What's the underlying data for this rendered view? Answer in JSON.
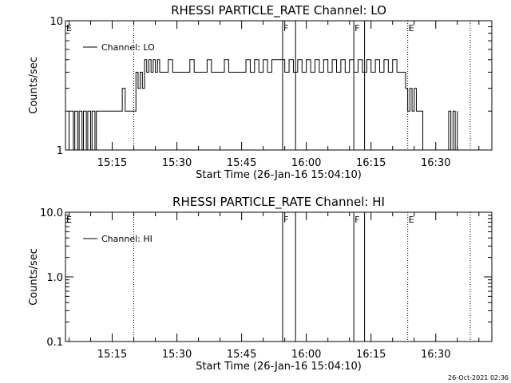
{
  "timestamp": "26-Oct-2021 02:36",
  "chart_data": [
    {
      "type": "line",
      "title": "RHESSI PARTICLE_RATE Channel: LO",
      "xlabel": "Start Time (26-Jan-16 15:04:10)",
      "ylabel": "Counts/sec",
      "yscale": "log",
      "ylim": [
        1,
        10
      ],
      "yticks": [
        "10",
        "1"
      ],
      "xlim": [
        "15:04:10",
        "16:43:00"
      ],
      "xticks": [
        "15:15",
        "15:30",
        "15:45",
        "16:00",
        "16:15",
        "16:30"
      ],
      "legend": "top-left",
      "series": [
        {
          "name": "Channel: LO",
          "x": [
            "15:04:40",
            "15:05:00",
            "15:06:00",
            "15:06:20",
            "15:07:00",
            "15:07:20",
            "15:08:00",
            "15:08:20",
            "15:09:00",
            "15:09:20",
            "15:10:00",
            "15:10:20",
            "15:11:00",
            "15:11:20",
            "15:12:00",
            "15:14:00",
            "15:16:00",
            "15:17:00",
            "15:17:20",
            "15:18:00",
            "15:20:00",
            "15:20:30",
            "15:21:00",
            "15:21:30",
            "15:22:00",
            "15:22:30",
            "15:23:00",
            "15:23:30",
            "15:24:00",
            "15:24:30",
            "15:25:00",
            "15:25:30",
            "15:26:00",
            "15:27:00",
            "15:28:00",
            "15:29:00",
            "15:30:00",
            "15:31:00",
            "15:32:00",
            "15:33:00",
            "15:34:00",
            "15:35:00",
            "15:36:00",
            "15:37:00",
            "15:38:00",
            "15:39:00",
            "15:40:00",
            "15:41:00",
            "15:42:00",
            "15:43:00",
            "15:44:00",
            "15:45:00",
            "15:46:00",
            "15:47:00",
            "15:48:00",
            "15:49:00",
            "15:50:00",
            "15:51:00",
            "15:52:00",
            "15:53:00",
            "15:54:00",
            "15:55:00",
            "15:56:00",
            "15:57:00",
            "15:58:00",
            "15:59:00",
            "16:00:00",
            "16:01:00",
            "16:02:00",
            "16:03:00",
            "16:04:00",
            "16:05:00",
            "16:06:00",
            "16:07:00",
            "16:08:00",
            "16:09:00",
            "16:10:00",
            "16:11:00",
            "16:12:00",
            "16:13:00",
            "16:14:00",
            "16:15:00",
            "16:16:00",
            "16:17:00",
            "16:18:00",
            "16:19:00",
            "16:20:00",
            "16:21:00",
            "16:22:00",
            "16:23:00",
            "16:23:30",
            "16:24:00",
            "16:24:30",
            "16:25:00",
            "16:25:30",
            "16:26:00",
            "16:27:00",
            "16:28:00",
            "16:29:00",
            "16:30:00",
            "16:31:00",
            "16:32:00",
            "16:33:00",
            "16:33:30",
            "16:34:00",
            "16:34:30",
            "16:35:00"
          ],
          "y": [
            1,
            2,
            1,
            2,
            1,
            2,
            1,
            2,
            1,
            2,
            1,
            2,
            1,
            2,
            2,
            2,
            2,
            2,
            3,
            2,
            2,
            4,
            3,
            4,
            3,
            5,
            4,
            5,
            4,
            5,
            4,
            5,
            4,
            4,
            5,
            4,
            4,
            4,
            4,
            5,
            4,
            4,
            4,
            5,
            4,
            4,
            4,
            5,
            4,
            4,
            4,
            4,
            5,
            4,
            5,
            4,
            5,
            4,
            5,
            5,
            5,
            4,
            5,
            4,
            5,
            4,
            5,
            4,
            5,
            4,
            5,
            4,
            5,
            4,
            5,
            4,
            5,
            4,
            5,
            4,
            5,
            4,
            5,
            4,
            5,
            4,
            5,
            4,
            4,
            3,
            2,
            3,
            2,
            3,
            2,
            2,
            1,
            1,
            1,
            1,
            1,
            1,
            2,
            1,
            2,
            1,
            2
          ]
        }
      ],
      "event_markers": [
        {
          "label": "E",
          "time": "15:04:10"
        },
        {
          "label": "",
          "time": "15:20:00"
        },
        {
          "label": "F",
          "time": "15:54:30"
        },
        {
          "label": "",
          "time": "15:57:30"
        },
        {
          "label": "F",
          "time": "16:11:00"
        },
        {
          "label": "",
          "time": "16:13:30"
        },
        {
          "label": "E",
          "time": "16:23:30"
        },
        {
          "label": "",
          "time": "16:38:00"
        }
      ]
    },
    {
      "type": "line",
      "title": "RHESSI PARTICLE_RATE Channel: HI",
      "xlabel": "Start Time (26-Jan-16 15:04:10)",
      "ylabel": "Counts/sec",
      "yscale": "log",
      "ylim": [
        0.1,
        10
      ],
      "yticks": [
        "10.0",
        "1.0",
        "0.1"
      ],
      "xlim": [
        "15:04:10",
        "16:43:00"
      ],
      "xticks": [
        "15:15",
        "15:30",
        "15:45",
        "16:00",
        "16:15",
        "16:30"
      ],
      "legend": "top-left",
      "series": [
        {
          "name": "Channel: HI",
          "x": [],
          "y": []
        }
      ],
      "event_markers": [
        {
          "label": "E",
          "time": "15:04:10"
        },
        {
          "label": "",
          "time": "15:20:00"
        },
        {
          "label": "F",
          "time": "15:54:30"
        },
        {
          "label": "",
          "time": "15:57:30"
        },
        {
          "label": "F",
          "time": "16:11:00"
        },
        {
          "label": "",
          "time": "16:13:30"
        },
        {
          "label": "E",
          "time": "16:23:30"
        },
        {
          "label": "",
          "time": "16:38:00"
        }
      ]
    }
  ]
}
